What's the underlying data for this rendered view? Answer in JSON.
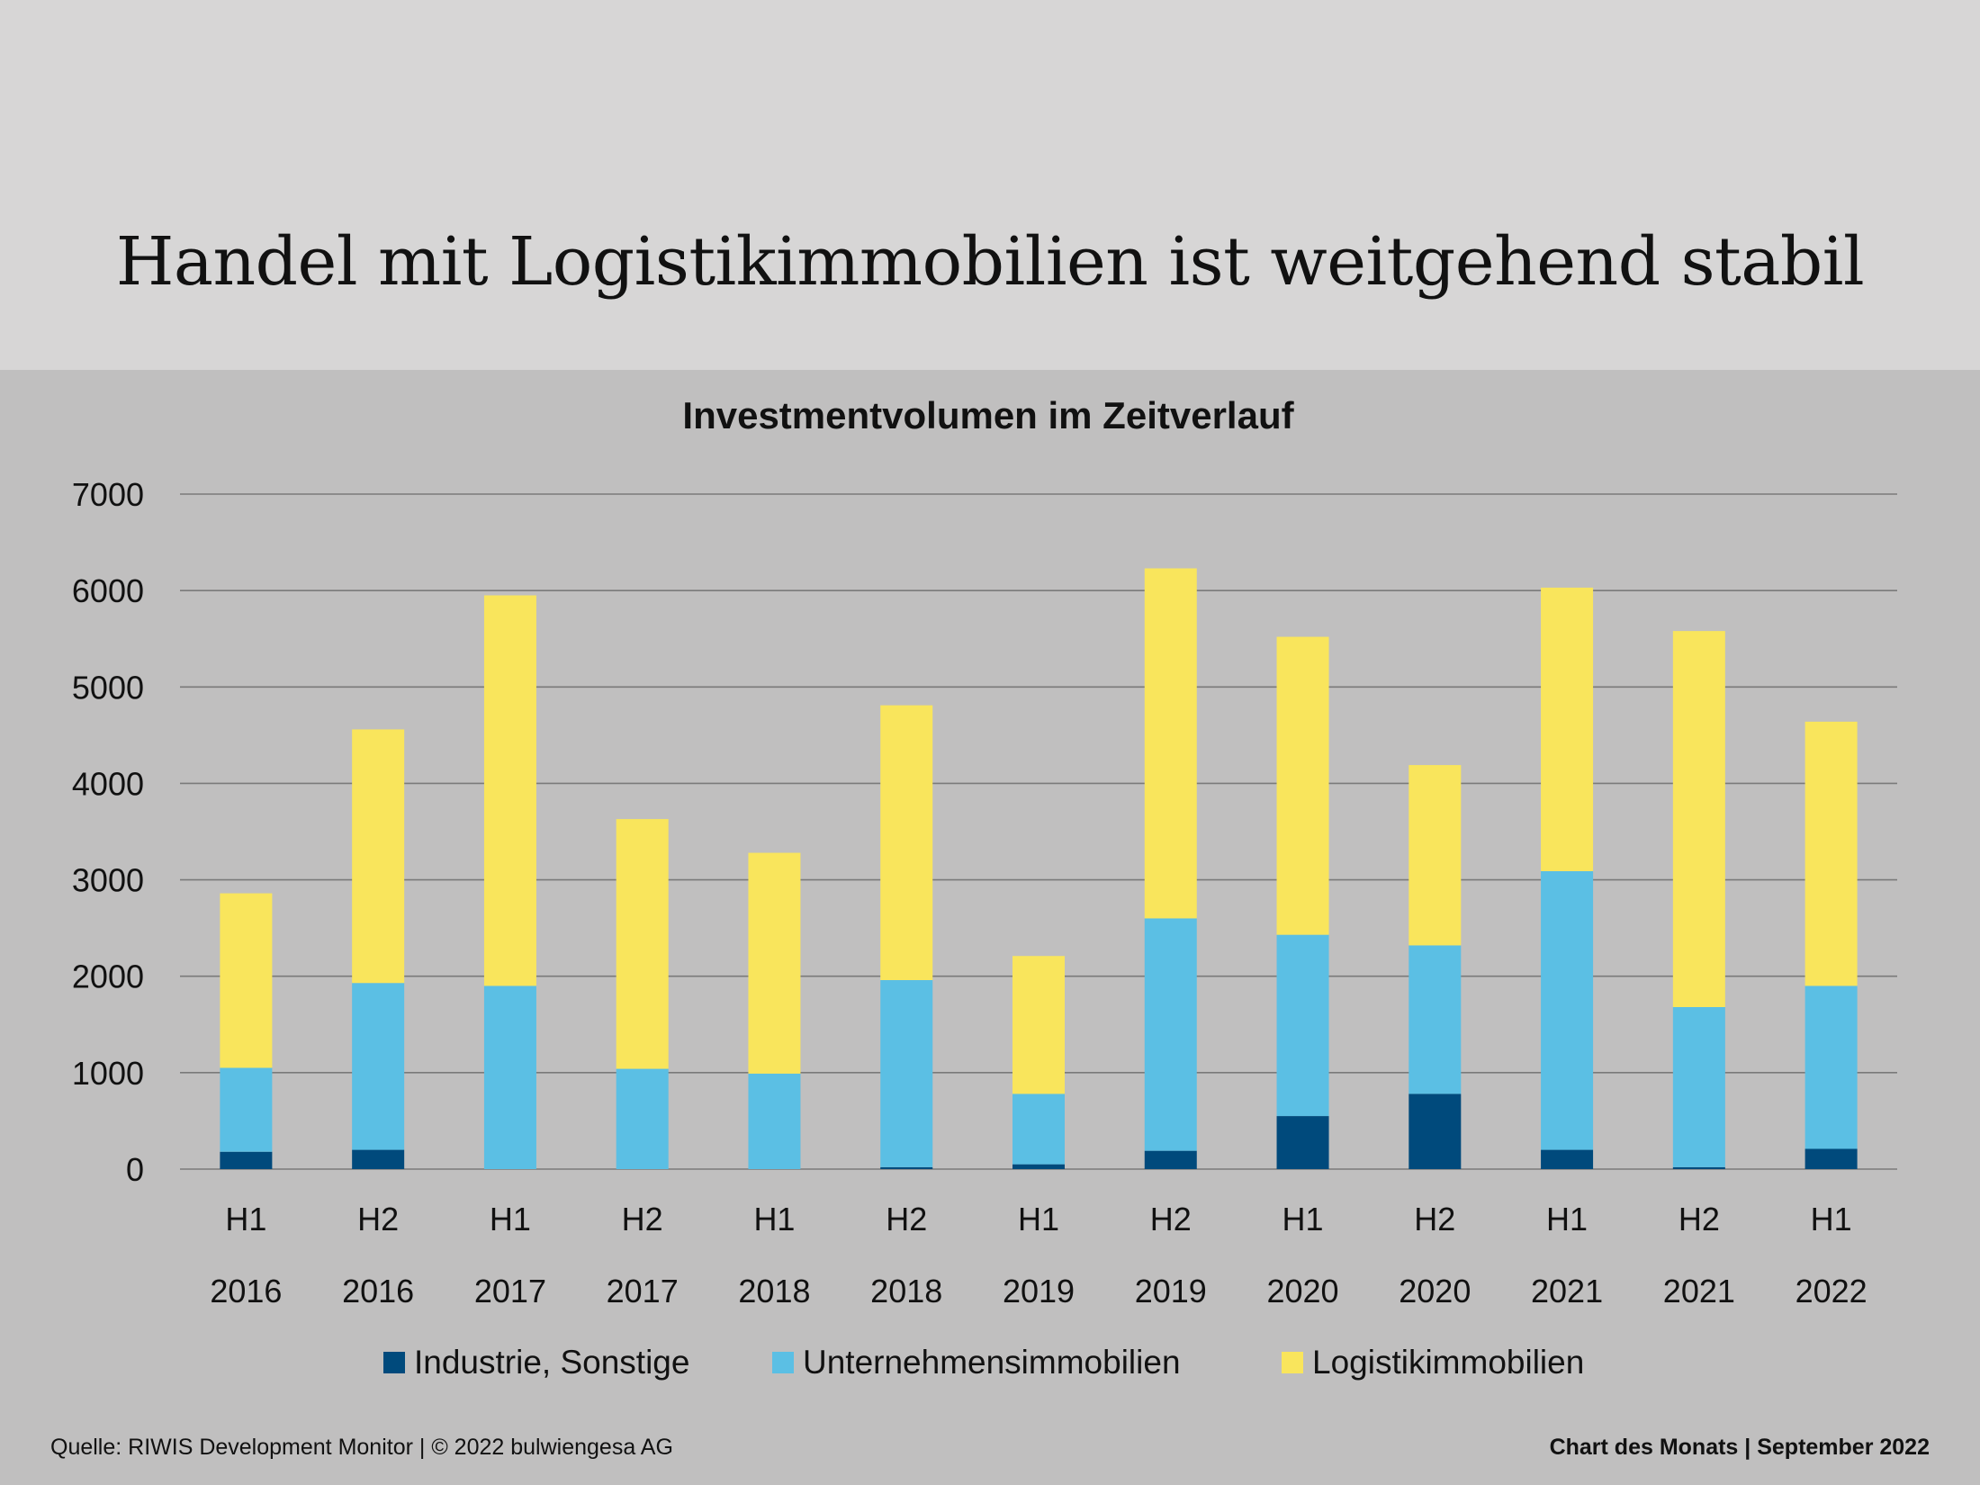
{
  "page": {
    "title": "Handel mit Logistikimmobilien ist weitgehend stabil",
    "source": "Quelle: RIWIS Development Monitor | © 2022 bulwiengesa AG",
    "footer_right": "Chart des Monats | September 2022"
  },
  "colors": {
    "header_background": "#d7d6d6",
    "chart_background": "#c0bfbf",
    "industrie": "#004a7c",
    "unternehmen": "#5bbfe4",
    "logistik": "#f9e55c",
    "gridline": "#7a7a7a"
  },
  "chart_data": {
    "type": "bar",
    "stacked": true,
    "title": "Investmentvolumen im Zeitverlauf",
    "xlabel": "",
    "ylabel": "",
    "ylim": [
      0,
      7000
    ],
    "yticks": [
      "0",
      "1000",
      "2000",
      "3000",
      "4000",
      "5000",
      "6000",
      "7000"
    ],
    "grid": true,
    "legend_position": "bottom",
    "categories": [
      [
        "H1",
        "2016"
      ],
      [
        "H2",
        "2016"
      ],
      [
        "H1",
        "2017"
      ],
      [
        "H2",
        "2017"
      ],
      [
        "H1",
        "2018"
      ],
      [
        "H2",
        "2018"
      ],
      [
        "H1",
        "2019"
      ],
      [
        "H2",
        "2019"
      ],
      [
        "H1",
        "2020"
      ],
      [
        "H2",
        "2020"
      ],
      [
        "H1",
        "2021"
      ],
      [
        "H2",
        "2021"
      ],
      [
        "H1",
        "2022"
      ]
    ],
    "series": [
      {
        "name": "Industrie, Sonstige",
        "color": "#004a7c",
        "values": [
          180,
          200,
          0,
          0,
          0,
          20,
          50,
          190,
          550,
          780,
          200,
          20,
          210
        ]
      },
      {
        "name": "Unternehmensimmobilien",
        "color": "#5bbfe4",
        "values": [
          870,
          1730,
          1900,
          1040,
          990,
          1940,
          730,
          2410,
          1880,
          1540,
          2890,
          1660,
          1690
        ]
      },
      {
        "name": "Logistikimmobilien",
        "color": "#f9e55c",
        "values": [
          1810,
          2630,
          4050,
          2590,
          2290,
          2850,
          1430,
          3630,
          3090,
          1870,
          2940,
          3900,
          2740
        ]
      }
    ]
  }
}
